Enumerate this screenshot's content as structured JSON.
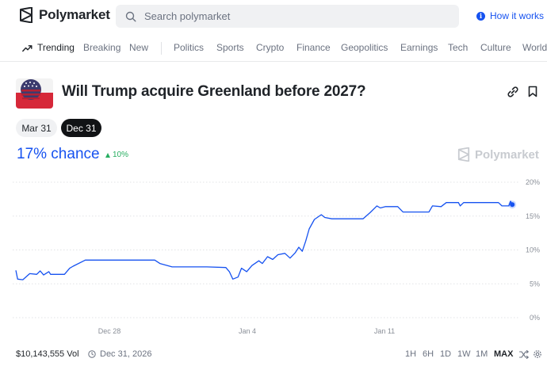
{
  "brand": {
    "name": "Polymarket"
  },
  "search": {
    "placeholder": "Search polymarket"
  },
  "header": {
    "how_it_works": "How it works"
  },
  "nav": {
    "items": [
      "Trending",
      "Breaking",
      "New",
      "Politics",
      "Sports",
      "Crypto",
      "Finance",
      "Geopolitics",
      "Earnings",
      "Tech",
      "Culture",
      "World"
    ],
    "active": "Trending"
  },
  "market": {
    "title": "Will Trump acquire Greenland before 2027?",
    "dates": [
      "Mar 31",
      "Dec 31"
    ],
    "selected_date": "Dec 31",
    "chance": "17% chance",
    "change": "10%",
    "watermark": "Polymarket",
    "volume": "$10,143,555 Vol",
    "end_date": "Dec 31, 2026"
  },
  "time_ranges": {
    "items": [
      "1H",
      "6H",
      "1D",
      "1W",
      "1M",
      "MAX"
    ],
    "selected": "MAX"
  },
  "colors": {
    "accent": "#1652f0",
    "positive": "#27ae60",
    "line": "#1652f0"
  },
  "chart_data": {
    "type": "line",
    "x_ticks": [
      "Dec 28",
      "Jan 4",
      "Jan 11"
    ],
    "y_ticks": [
      "20%",
      "15%",
      "10%",
      "5%",
      "0%"
    ],
    "ylim": [
      0,
      20
    ],
    "grid": true,
    "x_unit": "days after start of the chart period",
    "x_range": [
      0,
      28.5
    ],
    "series": [
      {
        "points": [
          [
            0.0,
            7.0
          ],
          [
            0.1,
            5.7
          ],
          [
            0.4,
            5.6
          ],
          [
            0.8,
            6.5
          ],
          [
            1.2,
            6.4
          ],
          [
            1.4,
            6.9
          ],
          [
            1.6,
            6.3
          ],
          [
            1.9,
            6.8
          ],
          [
            2.0,
            6.4
          ],
          [
            2.8,
            6.4
          ],
          [
            3.1,
            7.3
          ],
          [
            3.3,
            7.6
          ],
          [
            4.0,
            8.5
          ],
          [
            6.0,
            8.5
          ],
          [
            8.0,
            8.5
          ],
          [
            8.3,
            8.0
          ],
          [
            9.0,
            7.5
          ],
          [
            11.0,
            7.5
          ],
          [
            12.1,
            7.4
          ],
          [
            12.3,
            6.8
          ],
          [
            12.5,
            5.7
          ],
          [
            12.8,
            6.0
          ],
          [
            13.0,
            7.3
          ],
          [
            13.3,
            6.8
          ],
          [
            13.6,
            7.7
          ],
          [
            14.0,
            8.4
          ],
          [
            14.2,
            8.0
          ],
          [
            14.5,
            9.0
          ],
          [
            14.8,
            8.6
          ],
          [
            15.1,
            9.3
          ],
          [
            15.5,
            9.5
          ],
          [
            15.8,
            8.8
          ],
          [
            16.1,
            9.6
          ],
          [
            16.3,
            10.4
          ],
          [
            16.5,
            9.8
          ],
          [
            16.7,
            11.3
          ],
          [
            16.9,
            13.1
          ],
          [
            17.2,
            14.5
          ],
          [
            17.6,
            15.2
          ],
          [
            17.8,
            14.8
          ],
          [
            18.2,
            14.6
          ],
          [
            20.0,
            14.6
          ],
          [
            20.4,
            15.5
          ],
          [
            20.8,
            16.5
          ],
          [
            21.0,
            16.2
          ],
          [
            21.3,
            16.4
          ],
          [
            22.0,
            16.4
          ],
          [
            22.3,
            15.6
          ],
          [
            23.8,
            15.6
          ],
          [
            24.0,
            16.5
          ],
          [
            24.5,
            16.4
          ],
          [
            24.8,
            17.0
          ],
          [
            25.5,
            17.0
          ],
          [
            25.6,
            16.5
          ],
          [
            25.8,
            17.0
          ],
          [
            26.3,
            17.0
          ],
          [
            26.5,
            17.0
          ],
          [
            27.8,
            17.0
          ],
          [
            28.0,
            16.5
          ],
          [
            28.4,
            16.5
          ],
          [
            28.5,
            17.2
          ],
          [
            28.6,
            16.7
          ]
        ]
      }
    ]
  }
}
